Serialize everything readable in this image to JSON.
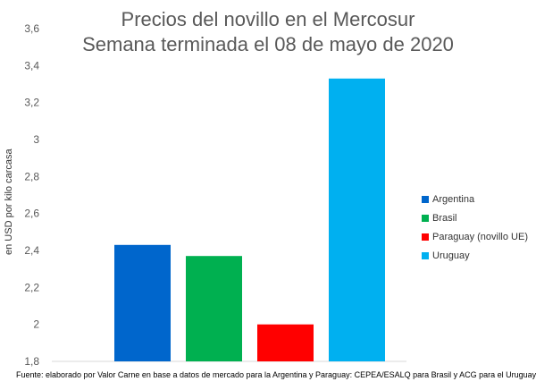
{
  "chart_data": {
    "type": "bar",
    "title": "Precios del novillo en el Mercosur",
    "subtitle": "Semana terminada el 08 de mayo de 2020",
    "ylabel": "en USD por kilo carcasa",
    "ylim": [
      1.8,
      3.6
    ],
    "yticks": [
      "1,8",
      "2",
      "2,2",
      "2,4",
      "2,6",
      "2,8",
      "3",
      "3,2",
      "3,4",
      "3,6"
    ],
    "grid": false,
    "legend_position": "right",
    "series": [
      {
        "name": "Argentina",
        "value": 2.43,
        "color": "#0066CC"
      },
      {
        "name": "Brasil",
        "value": 2.37,
        "color": "#00B050"
      },
      {
        "name": "Paraguay (novillo UE)",
        "value": 2.0,
        "color": "#FF0000"
      },
      {
        "name": "Uruguay",
        "value": 3.33,
        "color": "#00B0F0"
      }
    ],
    "source": "Fuente: elaborado por Valor Carne en base a datos de mercado para la Argentina y Paraguay: CEPEA/ESALQ para Brasil y ACG para el Uruguay"
  }
}
